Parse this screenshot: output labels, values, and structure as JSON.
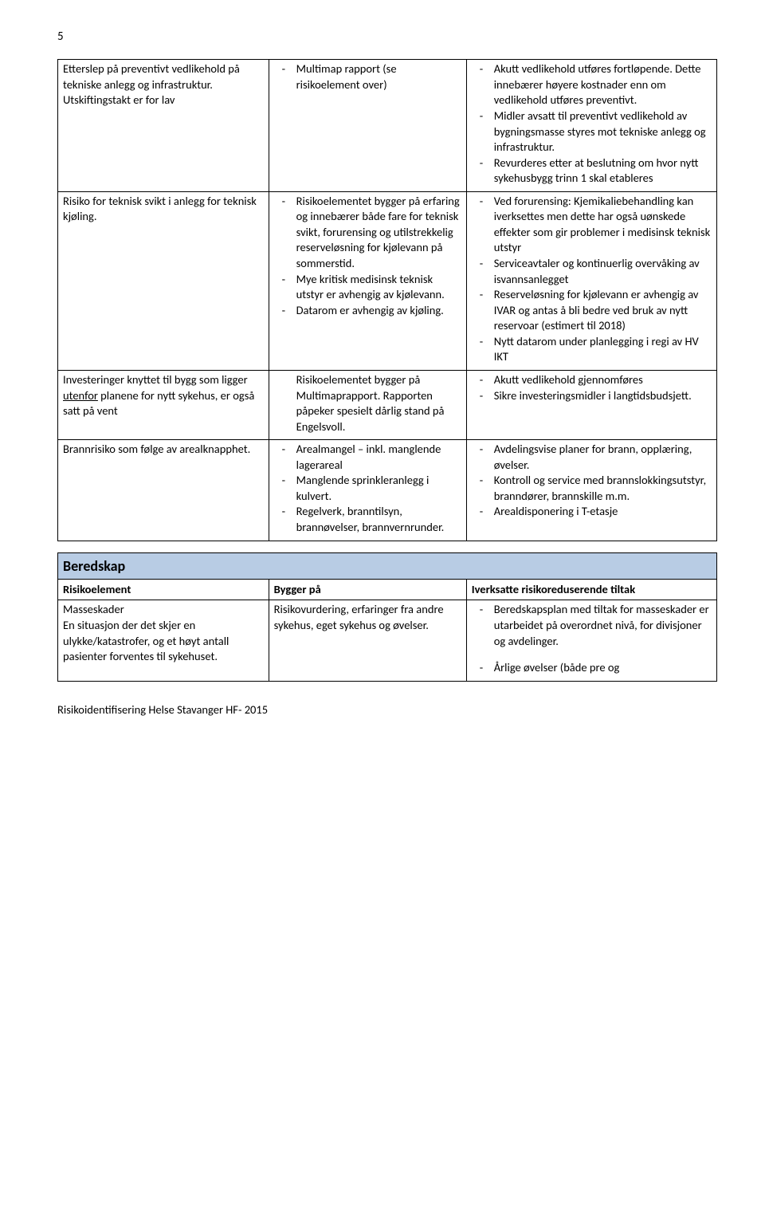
{
  "page_number": "5",
  "footer": "Risikoidentifisering Helse Stavanger HF- 2015",
  "colors": {
    "section_bg": "#b8cce4",
    "border": "#000000",
    "text": "#000000"
  },
  "table1": {
    "rows": [
      {
        "c1": [
          {
            "t": "plain",
            "text": "Etterslep på preventivt vedlikehold på tekniske anlegg og infrastruktur. Utskiftingstakt er for lav"
          }
        ],
        "c2": [
          {
            "t": "dash",
            "items": [
              "Multimap rapport (se risikoelement over)"
            ]
          }
        ],
        "c3": [
          {
            "t": "dash",
            "items": [
              "Akutt vedlikehold utføres fortløpende. Dette innebærer høyere kostnader enn om vedlikehold utføres preventivt.",
              "Midler avsatt til preventivt vedlikehold av bygningsmasse styres mot tekniske anlegg og infrastruktur.",
              "Revurderes etter at beslutning om hvor nytt sykehusbygg trinn 1 skal etableres"
            ]
          }
        ]
      },
      {
        "c1": [
          {
            "t": "plain",
            "text": "Risiko for teknisk svikt i anlegg for teknisk kjøling."
          }
        ],
        "c2": [
          {
            "t": "dash",
            "items": [
              "Risikoelementet bygger på erfaring og innebærer både fare for teknisk svikt, forurensing og utilstrekkelig reserveløsning for kjølevann på sommerstid.",
              "Mye kritisk medisinsk teknisk utstyr er avhengig av kjølevann.",
              "Datarom er avhengig av kjøling."
            ]
          }
        ],
        "c3": [
          {
            "t": "dash",
            "items": [
              "Ved forurensing: Kjemikaliebehandling kan iverksettes men dette har også uønskede effekter som gir problemer i medisinsk teknisk utstyr",
              "Serviceavtaler og kontinuerlig overvåking av isvannsanlegget",
              "Reserveløsning for kjølevann er avhengig av IVAR og antas å bli bedre ved bruk av nytt reservoar (estimert til 2018)",
              "Nytt datarom under planlegging i regi av HV IKT"
            ]
          }
        ]
      },
      {
        "c1": [
          {
            "t": "mixed",
            "parts": [
              {
                "text": "Investeringer knyttet til bygg som ligger "
              },
              {
                "text": "utenfor",
                "u": true
              },
              {
                "text": " planene for nytt sykehus, er også satt på vent"
              }
            ]
          }
        ],
        "c2": [
          {
            "t": "nodash",
            "items": [
              "Risikoelementet bygger på Multimaprapport. Rapporten påpeker spesielt dårlig stand på Engelsvoll."
            ]
          }
        ],
        "c3": [
          {
            "t": "dash",
            "items": [
              "Akutt vedlikehold gjennomføres",
              "Sikre investeringsmidler i langtidsbudsjett."
            ]
          }
        ]
      },
      {
        "c1": [
          {
            "t": "plain",
            "text": "Brannrisiko som følge av arealknapphet."
          }
        ],
        "c2": [
          {
            "t": "dash",
            "items": [
              "Arealmangel – inkl. manglende lagerareal",
              "Manglende sprinkleranlegg i kulvert.",
              "Regelverk, branntilsyn, brannøvelser, brannvernrunder."
            ]
          }
        ],
        "c3": [
          {
            "t": "dash",
            "items": [
              "Avdelingsvise planer for brann, opplæring, øvelser.",
              "Kontroll og service med brannslokkingsutstyr, branndører, brannskille m.m.",
              "Arealdisponering i T-etasje"
            ]
          }
        ]
      }
    ]
  },
  "table2": {
    "section_title": "Beredskap",
    "headers": [
      "Risikoelement",
      "Bygger på",
      "Iverksatte risikoreduserende tiltak"
    ],
    "rows": [
      {
        "c1": [
          {
            "t": "plain",
            "text": "Masseskader\nEn situasjon der det skjer en ulykke/katastrofer, og et høyt antall pasienter forventes til sykehuset."
          }
        ],
        "c2": [
          {
            "t": "plain",
            "text": "Risikovurdering, erfaringer fra andre sykehus, eget sykehus og øvelser."
          }
        ],
        "c3": [
          {
            "t": "dash",
            "items": [
              "Beredskapsplan med tiltak for masseskader er utarbeidet på overordnet nivå, for divisjoner og avdelinger."
            ]
          },
          {
            "t": "spacer"
          },
          {
            "t": "dash",
            "items": [
              "Årlige øvelser (både pre og"
            ]
          }
        ]
      }
    ]
  }
}
